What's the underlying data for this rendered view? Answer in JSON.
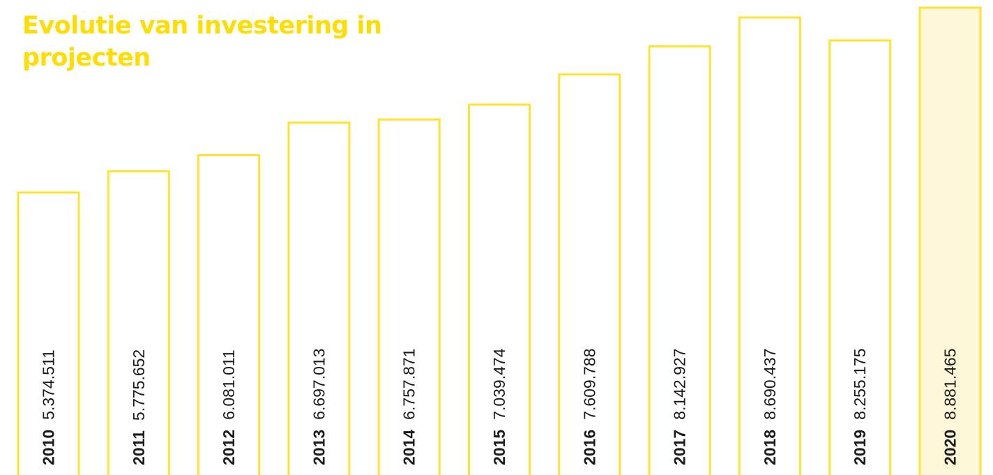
{
  "chart_data": {
    "type": "bar",
    "title": "Evolutie van investering in projecten",
    "categories": [
      "2010",
      "2011",
      "2012",
      "2013",
      "2014",
      "2015",
      "2016",
      "2017",
      "2018",
      "2019",
      "2020"
    ],
    "values": [
      5374511,
      5775652,
      6081011,
      6697013,
      6757871,
      7039474,
      7609788,
      8142927,
      8690437,
      8255175,
      8881465
    ],
    "value_labels": [
      "5.374.511",
      "5.775.652",
      "6.081.011",
      "6.697.013",
      "6.757.871",
      "7.039.474",
      "7.609.788",
      "8.142.927",
      "8.690.437",
      "8.255.175",
      "8.881.465"
    ],
    "highlight_category": "2020",
    "xlabel": "",
    "ylabel": "",
    "grid": false,
    "legend": "none"
  },
  "colors": {
    "accent": "#FFDD00",
    "bar_outline": "#FFE330",
    "highlight_fill": "#FEF7D8",
    "text": "#1A1A1A"
  }
}
